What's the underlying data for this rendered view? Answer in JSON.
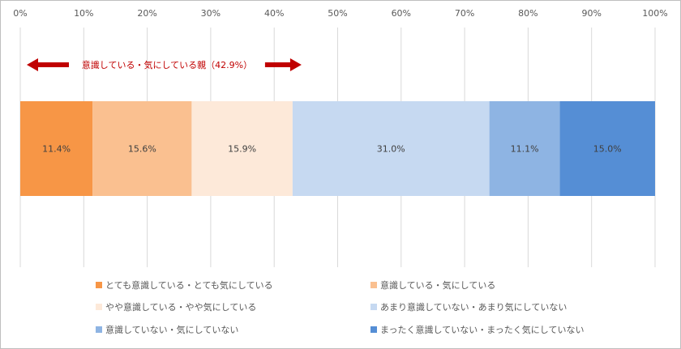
{
  "chart_data": {
    "type": "bar",
    "orientation": "horizontal-stacked-100",
    "xlim": [
      0,
      100
    ],
    "x_ticks": [
      "0%",
      "10%",
      "20%",
      "30%",
      "40%",
      "50%",
      "60%",
      "70%",
      "80%",
      "90%",
      "100%"
    ],
    "grid": true,
    "legend_placement": "bottom",
    "series": [
      {
        "name": "とても意識している・とても気にしている",
        "value": 11.4,
        "label": "11.4%",
        "color": "#f79646"
      },
      {
        "name": "意識している・気にしている",
        "value": 15.6,
        "label": "15.6%",
        "color": "#fac090"
      },
      {
        "name": "やや意識している・やや気にしている",
        "value": 15.9,
        "label": "15.9%",
        "color": "#fde9d9"
      },
      {
        "name": "あまり意識していない・あまり気にしていない",
        "value": 31.0,
        "label": "31.0%",
        "color": "#c6d9f1"
      },
      {
        "name": "意識していない・気にしていない",
        "value": 11.1,
        "label": "11.1%",
        "color": "#8eb4e3"
      },
      {
        "name": "まったく意識していない・まったく気にしていない",
        "value": 15.0,
        "label": "15.0%",
        "color": "#558ed5"
      }
    ],
    "annotation": {
      "text": "意識している・気にしている親（42.9%）",
      "range": [
        0,
        42.9
      ],
      "color": "#c00000"
    }
  }
}
